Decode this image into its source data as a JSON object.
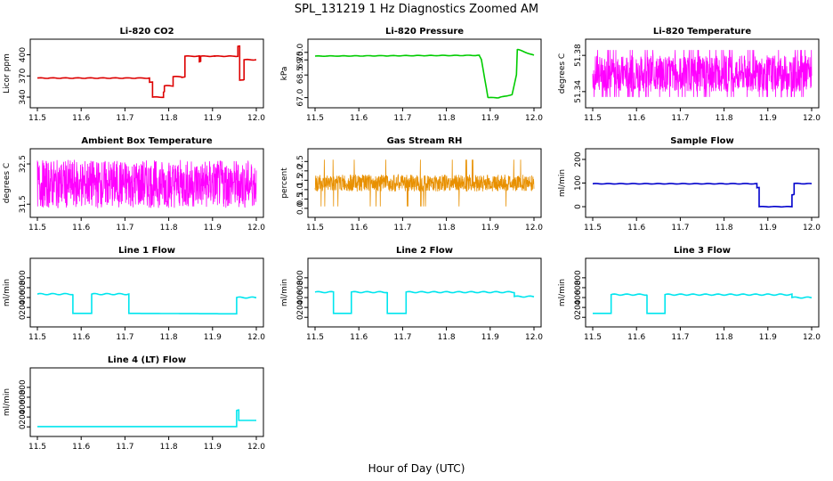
{
  "title": "SPL_131219  1 Hz Diagnostics Zoomed AM",
  "xlabel": "Hour of Day (UTC)",
  "chart_data": [
    {
      "type": "line",
      "title": "Li-820 CO2",
      "ylabel": "Licor ppm",
      "color": "#dd0000",
      "xlim": [
        11.5,
        12.0
      ],
      "xticks": [
        "11.5",
        "11.6",
        "11.7",
        "11.8",
        "11.9",
        "12.0"
      ],
      "ylim": [
        335,
        412
      ],
      "yticks": [
        340,
        370,
        400
      ],
      "yticklabels": [
        "340",
        "370",
        "400"
      ],
      "series": [
        {
          "x": [
            11.5,
            11.756,
            11.756,
            11.763,
            11.763,
            11.788,
            11.788,
            11.79,
            11.79,
            11.81,
            11.81,
            11.83,
            11.83,
            11.837,
            11.837,
            11.87,
            11.87,
            11.873,
            11.873,
            11.905,
            11.905,
            11.958,
            11.958,
            11.962,
            11.962,
            11.972,
            11.972,
            12.0
          ],
          "y": [
            367,
            367,
            361,
            361,
            340,
            340,
            347,
            347,
            356,
            356,
            369,
            369,
            368,
            368,
            398,
            398,
            390,
            390,
            398,
            398,
            398,
            398,
            412,
            412,
            364,
            364,
            393,
            393
          ]
        }
      ]
    },
    {
      "type": "line",
      "title": "Li-820 Pressure",
      "ylabel": "kPa",
      "color": "#00cc00",
      "xlim": [
        11.5,
        12.0
      ],
      "xticks": [
        "11.5",
        "11.6",
        "11.7",
        "11.8",
        "11.9",
        "12.0"
      ],
      "ylim": [
        66.8,
        70.4
      ],
      "yticks": [
        67.0,
        68.5,
        69.5,
        70.0
      ],
      "yticklabels": [
        "67.0",
        "68.5",
        "69.5",
        "70.0"
      ],
      "series": [
        {
          "x": [
            11.5,
            11.7,
            11.875,
            11.875,
            11.88,
            11.88,
            11.895,
            11.895,
            11.92,
            11.92,
            11.95,
            11.95,
            11.96,
            11.96,
            11.962,
            11.962,
            12.0
          ],
          "y": [
            69.75,
            69.78,
            69.8,
            69.8,
            69.5,
            69.5,
            67.0,
            67.0,
            67.0,
            67.0,
            67.2,
            67.2,
            68.5,
            68.5,
            70.2,
            70.2,
            69.8
          ]
        }
      ]
    },
    {
      "type": "line",
      "title": "Li-820 Temperature",
      "ylabel": "degrees C",
      "color": "#ff00ff",
      "xlim": [
        11.5,
        12.0
      ],
      "xticks": [
        "11.5",
        "11.6",
        "11.7",
        "11.8",
        "11.9",
        "12.0"
      ],
      "ylim": [
        51.33,
        51.39
      ],
      "yticks": [
        51.34,
        51.38
      ],
      "yticklabels": [
        "51.34",
        "51.38"
      ],
      "series": [
        {
          "x": [
            11.5,
            12.0
          ],
          "y": [
            51.36,
            51.36
          ],
          "note": "digitization noise between 51.34 and 51.38"
        }
      ]
    },
    {
      "type": "line",
      "title": "Ambient Box Temperature",
      "ylabel": "degrees C",
      "color": "#ff00ff",
      "xlim": [
        11.5,
        12.0
      ],
      "xticks": [
        "11.5",
        "11.6",
        "11.7",
        "11.8",
        "11.9",
        "12.0"
      ],
      "ylim": [
        31.35,
        32.7
      ],
      "yticks": [
        31.5,
        32.5
      ],
      "yticklabels": [
        "31.5",
        "32.5"
      ],
      "series": [
        {
          "x": [
            11.5,
            12.0
          ],
          "y": [
            31.95,
            31.95
          ],
          "note": "noise between 31.4 and 32.6"
        }
      ]
    },
    {
      "type": "line",
      "title": "Gas Stream RH",
      "ylabel": "percent",
      "color": "#e89000",
      "xlim": [
        11.5,
        12.0
      ],
      "xticks": [
        "11.5",
        "11.6",
        "11.7",
        "11.8",
        "11.9",
        "12.0"
      ],
      "ylim": [
        -0.1,
        2.8
      ],
      "yticks": [
        0.0,
        0.5,
        1.0,
        1.5,
        2.0,
        2.5
      ],
      "yticklabels": [
        "0.0",
        "0.5",
        "1.0",
        "1.5",
        "2.0",
        "2.5"
      ],
      "series": [
        {
          "x": [
            11.5,
            12.0
          ],
          "y": [
            1.3,
            1.3
          ],
          "note": "noise between 0.9 and 1.8"
        }
      ]
    },
    {
      "type": "line",
      "title": "Sample Flow",
      "ylabel": "ml/min",
      "color": "#0000cc",
      "xlim": [
        11.5,
        12.0
      ],
      "xticks": [
        "11.5",
        "11.6",
        "11.7",
        "11.8",
        "11.9",
        "12.0"
      ],
      "ylim": [
        -15,
        215
      ],
      "yticks": [
        0,
        100,
        200
      ],
      "yticklabels": [
        "0",
        "100",
        "200"
      ],
      "series": [
        {
          "x": [
            11.5,
            11.875,
            11.875,
            11.88,
            11.88,
            11.955,
            11.955,
            11.96,
            11.96,
            12.0
          ],
          "y": [
            97,
            97,
            80,
            80,
            0,
            0,
            50,
            50,
            98,
            97
          ]
        }
      ]
    },
    {
      "type": "line",
      "title": "Line 1 Flow",
      "ylabel": "ml/min",
      "color": "#00e5ee",
      "xlim": [
        11.5,
        12.0
      ],
      "xticks": [
        "11.5",
        "11.6",
        "11.7",
        "11.8",
        "11.9",
        "12.0"
      ],
      "ylim": [
        -50,
        1050
      ],
      "yticks": [
        0,
        200,
        400,
        600,
        800
      ],
      "yticklabels": [
        "0",
        "200",
        "400",
        "600",
        "800"
      ],
      "series": [
        {
          "x": [
            11.5,
            11.581,
            11.581,
            11.624,
            11.624,
            11.709,
            11.709,
            11.955,
            11.955,
            12.0
          ],
          "y": [
            470,
            470,
            80,
            80,
            470,
            470,
            80,
            70,
            400,
            400
          ]
        }
      ]
    },
    {
      "type": "line",
      "title": "Line 2 Flow",
      "ylabel": "ml/min",
      "color": "#00e5ee",
      "xlim": [
        11.5,
        12.0
      ],
      "xticks": [
        "11.5",
        "11.6",
        "11.7",
        "11.8",
        "11.9",
        "12.0"
      ],
      "ylim": [
        -50,
        1050
      ],
      "yticks": [
        0,
        200,
        400,
        600,
        800
      ],
      "yticklabels": [
        "0",
        "200",
        "400",
        "600",
        "800"
      ],
      "series": [
        {
          "x": [
            11.5,
            11.542,
            11.542,
            11.583,
            11.583,
            11.665,
            11.665,
            11.708,
            11.708,
            11.955,
            11.955,
            12.0
          ],
          "y": [
            510,
            510,
            80,
            80,
            510,
            510,
            80,
            80,
            510,
            510,
            420,
            420
          ]
        }
      ]
    },
    {
      "type": "line",
      "title": "Line 3 Flow",
      "ylabel": "ml/min",
      "color": "#00e5ee",
      "xlim": [
        11.5,
        12.0
      ],
      "xticks": [
        "11.5",
        "11.6",
        "11.7",
        "11.8",
        "11.9",
        "12.0"
      ],
      "ylim": [
        -50,
        1050
      ],
      "yticks": [
        0,
        200,
        400,
        600,
        800
      ],
      "yticklabels": [
        "0",
        "200",
        "400",
        "600",
        "800"
      ],
      "series": [
        {
          "x": [
            11.5,
            11.542,
            11.542,
            11.624,
            11.624,
            11.665,
            11.665,
            11.955,
            11.955,
            12.0
          ],
          "y": [
            80,
            80,
            460,
            460,
            80,
            80,
            460,
            460,
            400,
            400
          ]
        }
      ]
    },
    {
      "type": "line",
      "title": "Line 4 (LT) Flow",
      "ylabel": "ml/min",
      "color": "#00e5ee",
      "xlim": [
        11.5,
        12.0
      ],
      "xticks": [
        "11.5",
        "11.6",
        "11.7",
        "11.8",
        "11.9",
        "12.0"
      ],
      "ylim": [
        -50,
        1050
      ],
      "yticks": [
        0,
        200,
        400,
        600,
        800
      ],
      "yticklabels": [
        "0",
        "200",
        "400",
        "600",
        "800"
      ],
      "series": [
        {
          "x": [
            11.5,
            11.955,
            11.955,
            11.96,
            11.96,
            12.0
          ],
          "y": [
            5,
            5,
            330,
            330,
            130,
            130
          ]
        }
      ]
    }
  ]
}
